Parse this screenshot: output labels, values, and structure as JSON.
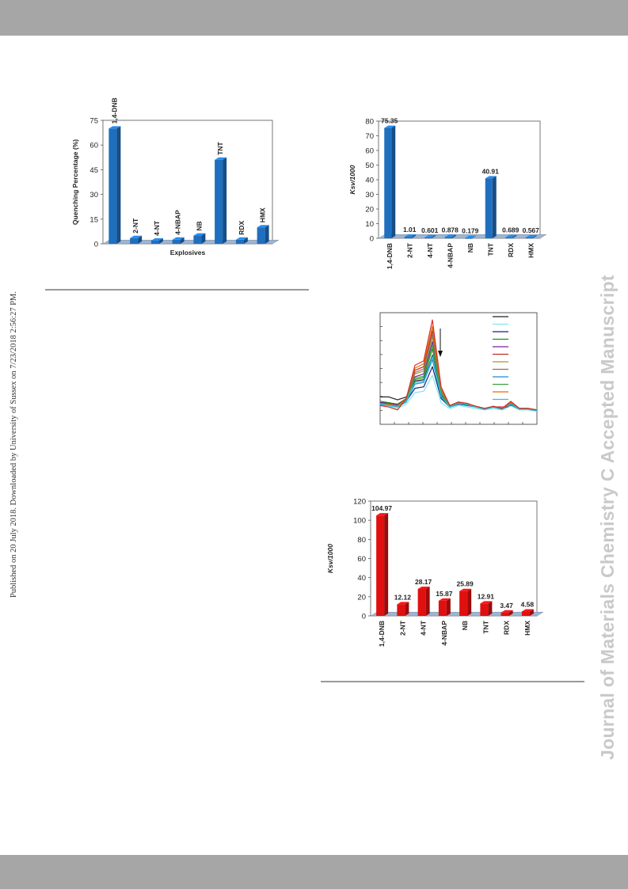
{
  "page": {
    "side_left_text": "Published on 20 July 2018. Downloaded by University of Sussex on 7/23/2018 2:56:27 PM.",
    "side_right_text": "Journal of Materials Chemistry C Accepted Manuscript",
    "colors": {
      "bar_band": "#a6a6a6",
      "blue": "#1f6fbf",
      "red": "#e01010",
      "watermark": "#c9c9c9"
    }
  },
  "chart_data": [
    {
      "type": "bar",
      "categories": [
        "1,4-DNB",
        "2-NT",
        "4-NT",
        "4-NBAP",
        "NB",
        "TNT",
        "RDX",
        "HMX"
      ],
      "values": [
        70,
        3.5,
        2,
        2.5,
        5,
        51,
        2.5,
        10
      ],
      "xlabel": "Explosives",
      "ylabel": "Quenching  Percentage (%)",
      "ylim": [
        0,
        75
      ],
      "yticks": [
        "0",
        "15",
        "30",
        "45",
        "60",
        "75"
      ],
      "color": "#1f6fbf"
    },
    {
      "type": "bar",
      "categories": [
        "1,4-DNB",
        "2-NT",
        "4-NT",
        "4-NBAP",
        "NB",
        "TNT",
        "RDX",
        "HMX"
      ],
      "values": [
        75.35,
        1.01,
        0.601,
        0.878,
        0.179,
        40.91,
        0.689,
        0.567
      ],
      "value_labels": [
        "75.35",
        "1.01",
        "0.601",
        "0.878",
        "0.179",
        "40.91",
        "0.689",
        "0.567"
      ],
      "ylabel": "Ksv/1000",
      "ylim": [
        0,
        80
      ],
      "yticks": [
        "0",
        "10",
        "20",
        "30",
        "40",
        "50",
        "60",
        "70",
        "80"
      ],
      "color": "#1f6fbf"
    },
    {
      "type": "line",
      "series": [
        {
          "color": "#222222",
          "values": [
            0.38,
            0.38,
            0.34,
            0.38,
            0.6,
            0.62,
            0.96,
            0.4,
            0.25,
            0.3,
            0.28,
            0.25,
            0.22,
            0.25,
            0.22,
            0.28,
            0.22,
            0.22,
            0.2
          ]
        },
        {
          "color": "#80e8e8",
          "values": [
            0.26,
            0.25,
            0.22,
            0.28,
            0.44,
            0.46,
            0.68,
            0.3,
            0.22,
            0.26,
            0.24,
            0.22,
            0.2,
            0.22,
            0.2,
            0.26,
            0.2,
            0.2,
            0.18
          ]
        },
        {
          "color": "#1a237e",
          "values": [
            0.3,
            0.3,
            0.26,
            0.32,
            0.5,
            0.52,
            0.8,
            0.36,
            0.24,
            0.28,
            0.26,
            0.24,
            0.21,
            0.24,
            0.21,
            0.27,
            0.21,
            0.21,
            0.19
          ]
        },
        {
          "color": "#1e8a1e",
          "values": [
            0.32,
            0.3,
            0.28,
            0.36,
            0.62,
            0.65,
            1.05,
            0.42,
            0.25,
            0.3,
            0.28,
            0.25,
            0.22,
            0.25,
            0.22,
            0.3,
            0.22,
            0.22,
            0.2
          ]
        },
        {
          "color": "#7b1fa2",
          "values": [
            0.3,
            0.29,
            0.27,
            0.35,
            0.66,
            0.7,
            1.15,
            0.44,
            0.25,
            0.3,
            0.28,
            0.25,
            0.22,
            0.25,
            0.22,
            0.3,
            0.22,
            0.22,
            0.2
          ]
        },
        {
          "color": "#c62828",
          "values": [
            0.28,
            0.28,
            0.25,
            0.36,
            0.75,
            0.8,
            1.3,
            0.48,
            0.26,
            0.31,
            0.28,
            0.25,
            0.22,
            0.25,
            0.22,
            0.31,
            0.22,
            0.22,
            0.2
          ]
        },
        {
          "color": "#9e9d24",
          "values": [
            0.29,
            0.28,
            0.26,
            0.35,
            0.7,
            0.74,
            1.22,
            0.46,
            0.25,
            0.3,
            0.28,
            0.25,
            0.22,
            0.25,
            0.22,
            0.3,
            0.22,
            0.22,
            0.2
          ]
        },
        {
          "color": "#8d6e63",
          "values": [
            0.29,
            0.28,
            0.26,
            0.35,
            0.72,
            0.77,
            1.26,
            0.47,
            0.26,
            0.3,
            0.28,
            0.25,
            0.22,
            0.25,
            0.22,
            0.3,
            0.22,
            0.22,
            0.2
          ]
        },
        {
          "color": "#1e88e5",
          "values": [
            0.27,
            0.26,
            0.24,
            0.31,
            0.56,
            0.58,
            0.9,
            0.38,
            0.24,
            0.29,
            0.27,
            0.24,
            0.21,
            0.24,
            0.21,
            0.28,
            0.21,
            0.21,
            0.19
          ]
        },
        {
          "color": "#43a047",
          "values": [
            0.28,
            0.27,
            0.25,
            0.34,
            0.64,
            0.67,
            1.1,
            0.43,
            0.25,
            0.3,
            0.28,
            0.25,
            0.22,
            0.25,
            0.22,
            0.3,
            0.22,
            0.22,
            0.2
          ]
        },
        {
          "color": "#ef6c00",
          "values": [
            0.28,
            0.27,
            0.25,
            0.36,
            0.78,
            0.84,
            1.36,
            0.5,
            0.26,
            0.31,
            0.29,
            0.25,
            0.22,
            0.25,
            0.22,
            0.31,
            0.22,
            0.22,
            0.2
          ]
        },
        {
          "color": "#26c6da",
          "values": [
            0.28,
            0.26,
            0.24,
            0.32,
            0.58,
            0.6,
            0.94,
            0.39,
            0.24,
            0.29,
            0.27,
            0.24,
            0.21,
            0.24,
            0.21,
            0.28,
            0.21,
            0.21,
            0.19
          ]
        },
        {
          "color": "#d32f2f",
          "values": [
            0.26,
            0.24,
            0.2,
            0.36,
            0.82,
            0.88,
            1.45,
            0.52,
            0.26,
            0.31,
            0.29,
            0.25,
            0.22,
            0.25,
            0.22,
            0.32,
            0.22,
            0.22,
            0.2
          ]
        }
      ],
      "xlim": [
        0,
        18
      ],
      "ylim": [
        0,
        1.55
      ],
      "arrow": "down",
      "legend_position": "top-right"
    },
    {
      "type": "bar",
      "categories": [
        "1,4-DNB",
        "2-NT",
        "4-NT",
        "4-NBAP",
        "NB",
        "TNT",
        "RDX",
        "HMX"
      ],
      "values": [
        104.97,
        12.12,
        28.17,
        15.87,
        25.89,
        12.91,
        3.47,
        4.58
      ],
      "value_labels": [
        "104.97",
        "12.12",
        "28.17",
        "15.87",
        "25.89",
        "12.91",
        "3.47",
        "4.58"
      ],
      "ylabel": "Ksv/1000",
      "ylim": [
        0,
        120
      ],
      "yticks": [
        "0",
        "20",
        "40",
        "60",
        "80",
        "100",
        "120"
      ],
      "color": "#e01010"
    }
  ]
}
